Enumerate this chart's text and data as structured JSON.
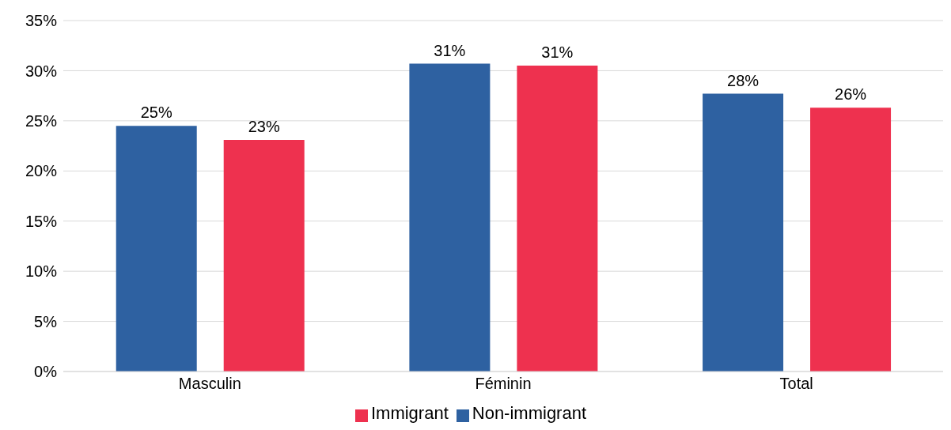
{
  "chart_data": {
    "type": "bar",
    "categories": [
      "Masculin",
      "Féminin",
      "Total"
    ],
    "series": [
      {
        "name": "Non-immigrant",
        "color": "#2e61a1",
        "values": [
          24.5,
          30.7,
          27.7
        ],
        "value_labels": [
          "25%",
          "31%",
          "28%"
        ]
      },
      {
        "name": "Immigrant",
        "color": "#ee314f",
        "values": [
          23.1,
          30.5,
          26.3
        ],
        "value_labels": [
          "23%",
          "31%",
          "26%"
        ]
      }
    ],
    "ylim": [
      0,
      35
    ],
    "yticks": [
      {
        "value": 0,
        "label": "0%"
      },
      {
        "value": 5,
        "label": "5%"
      },
      {
        "value": 10,
        "label": "10%"
      },
      {
        "value": 15,
        "label": "15%"
      },
      {
        "value": 20,
        "label": "20%"
      },
      {
        "value": 25,
        "label": "25%"
      },
      {
        "value": 30,
        "label": "30%"
      },
      {
        "value": 35,
        "label": "35%"
      }
    ],
    "grid": "y",
    "legend": "bottom"
  }
}
